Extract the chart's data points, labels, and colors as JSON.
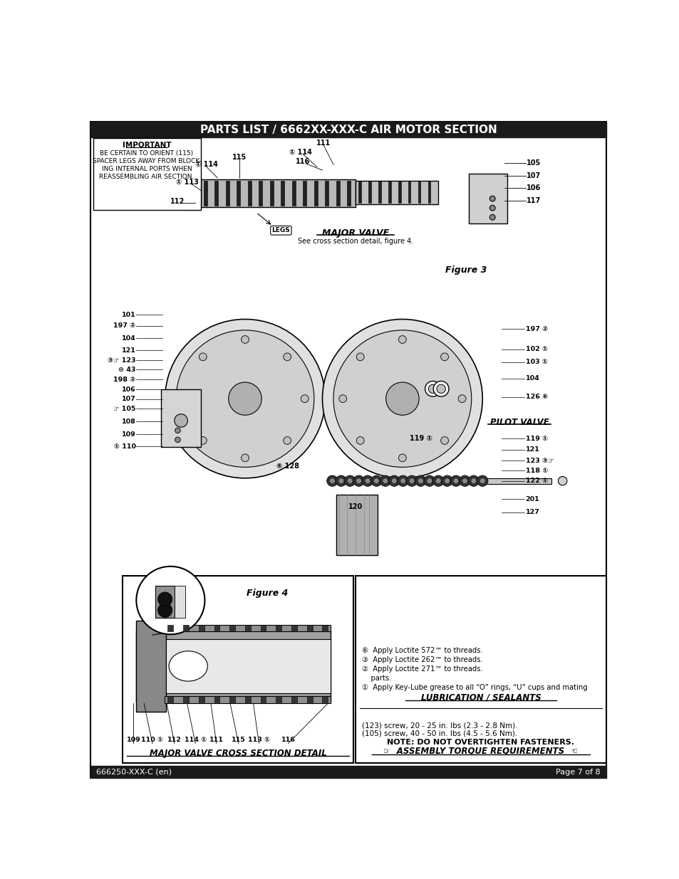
{
  "title": "PARTS LIST / 6662XX-XXX-C AIR MOTOR SECTION",
  "footer_left": "666250-XXX-C (en)",
  "footer_right": "Page 7 of 8",
  "bg_color": "#ffffff",
  "title_bg": "#1a1a1a",
  "title_fg": "#ffffff",
  "border_color": "#000000",
  "figure3_label": "Figure 3",
  "figure4_label": "Figure 4",
  "major_valve_title": "MAJOR VALVE",
  "major_valve_sub": "See cross section detail, figure 4.",
  "cross_section_title": "MAJOR VALVE CROSS SECTION DETAIL",
  "cross_section_parts": [
    "109",
    "110 ①",
    "112",
    "114 ①",
    "111",
    "115",
    "113 ①",
    "116"
  ],
  "important_text": [
    "IMPORTANT",
    "BE CERTAIN TO ORIENT (115)",
    "SPACER LEGS AWAY FROM BLOCK-",
    "ING INTERNAL PORTS WHEN",
    "REASSEMBLING AIR SECTION."
  ],
  "pilot_valve_label": "PILOT VALVE",
  "assembly_torque_title": "☞  ASSEMBLY TORQUE REQUIREMENTS  ☜",
  "assembly_torque_note": "NOTE: DO NOT OVERTIGHTEN FASTENERS.",
  "assembly_torque_lines": [
    "(105) screw, 40 - 50 in. lbs (4.5 - 5.6 Nm).",
    "(123) screw, 20 - 25 in. lbs (2.3 - 2.8 Nm)."
  ],
  "lubrication_title": "LUBRICATION / SEALANTS",
  "lubrication_lines": [
    "①  Apply Key-Lube grease to all “O” rings, “U” cups and mating",
    "    parts.",
    "②  Apply Loctite 271™ to threads.",
    "③  Apply Loctite 262™ to threads.",
    "⑥  Apply Loctite 572™ to threads."
  ],
  "far_right_labels": [
    "105",
    "107",
    "106",
    "117"
  ],
  "main_parts_left": [
    "101",
    "197 ②",
    "104",
    "121",
    "③☞ 123",
    "⊙ 43",
    "198 ②",
    "106",
    "107",
    "☞ 105",
    "108",
    "109",
    "① 110"
  ],
  "main_parts_right": [
    "197 ②",
    "102 ①",
    "103 ①",
    "104",
    "126 ⑥"
  ],
  "pilot_parts": [
    "119 ①",
    "121",
    "123 ③☞",
    "118 ①",
    "122 ①",
    "201",
    "127"
  ]
}
